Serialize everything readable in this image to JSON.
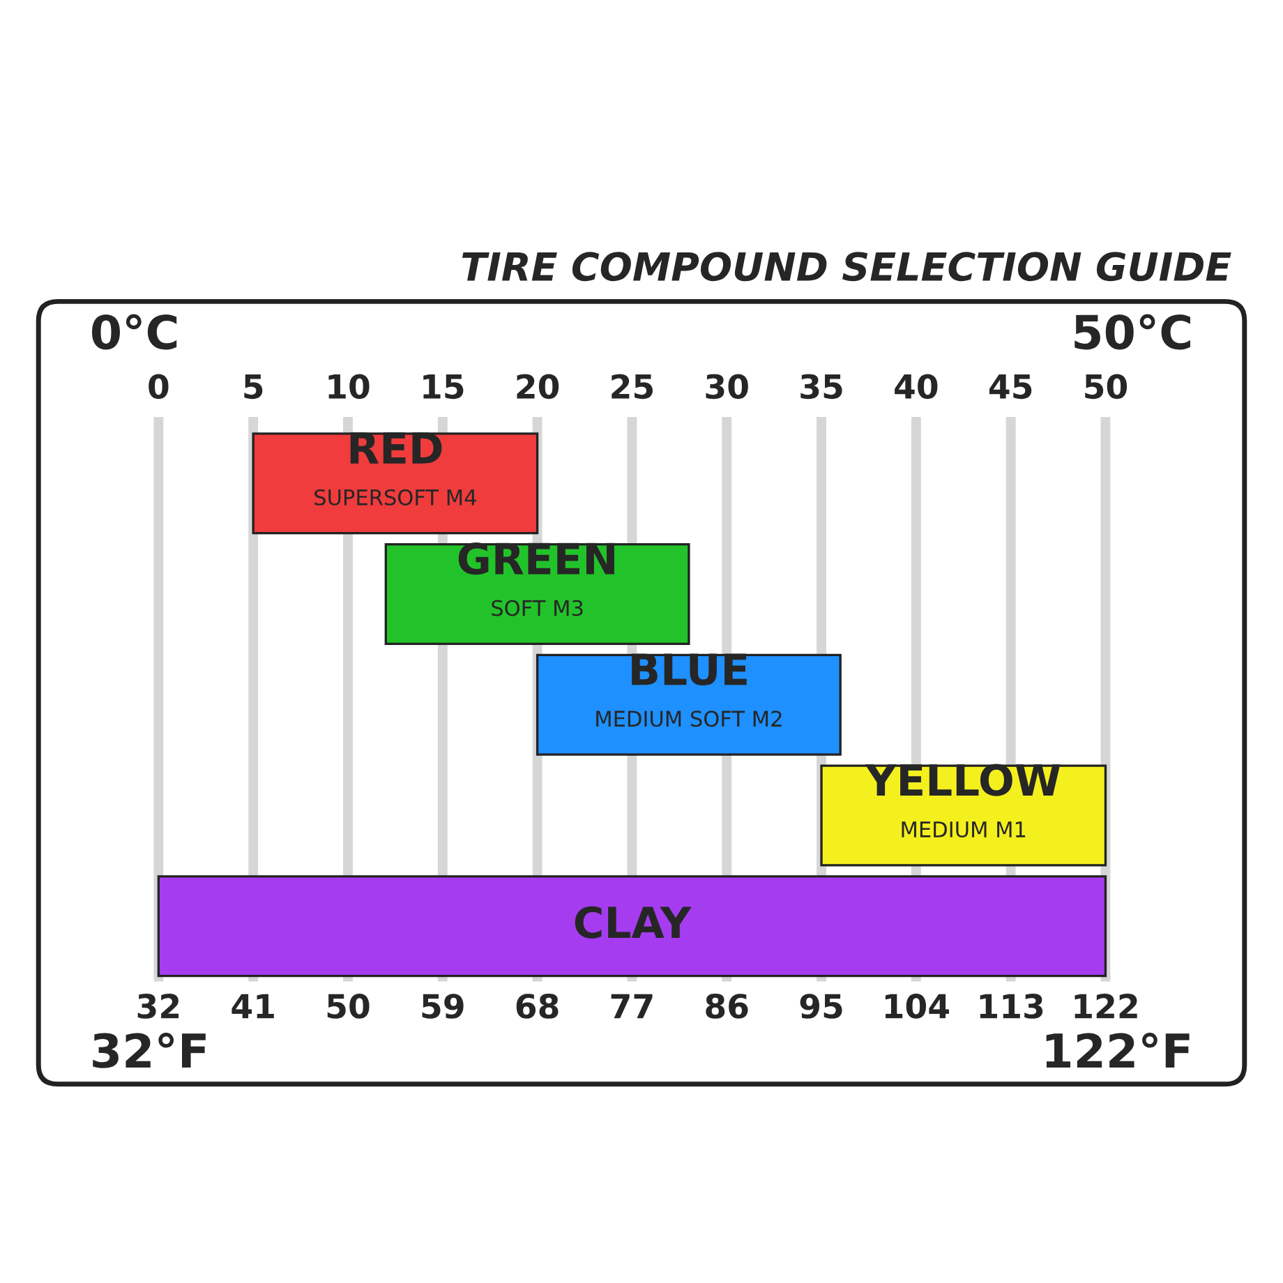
{
  "chart_data": {
    "type": "bar",
    "orientation": "horizontal",
    "title": "TIRE COMPOUND SELECTION GUIDE",
    "categories": [
      "RED\nSUPERSOFT M4",
      "GREEN\nSOFT M3",
      "BLUE\nMEDIUM SOFT M2",
      "YELLOW\nMEDIUM M1",
      "CLAY"
    ],
    "base": [
      5,
      12,
      20,
      35,
      0
    ],
    "values": [
      15,
      16,
      16,
      15,
      50
    ],
    "colors": [
      "#f03c3c",
      "#22c32a",
      "#1e90ff",
      "#f4f01e",
      "#a63cf0"
    ],
    "xlim": [
      -6,
      57
    ],
    "xticks": [
      0,
      5,
      10,
      15,
      20,
      25,
      30,
      35,
      40,
      45,
      50
    ],
    "x2lim": [
      21.2,
      134.6
    ],
    "x2ticks": [
      32,
      41,
      50,
      59,
      68,
      77,
      86,
      95,
      104,
      113,
      122
    ],
    "grid": "x",
    "tick_labels": "x",
    "annotations": [
      "0°C",
      "50°C",
      "32°F",
      "122°F"
    ]
  }
}
